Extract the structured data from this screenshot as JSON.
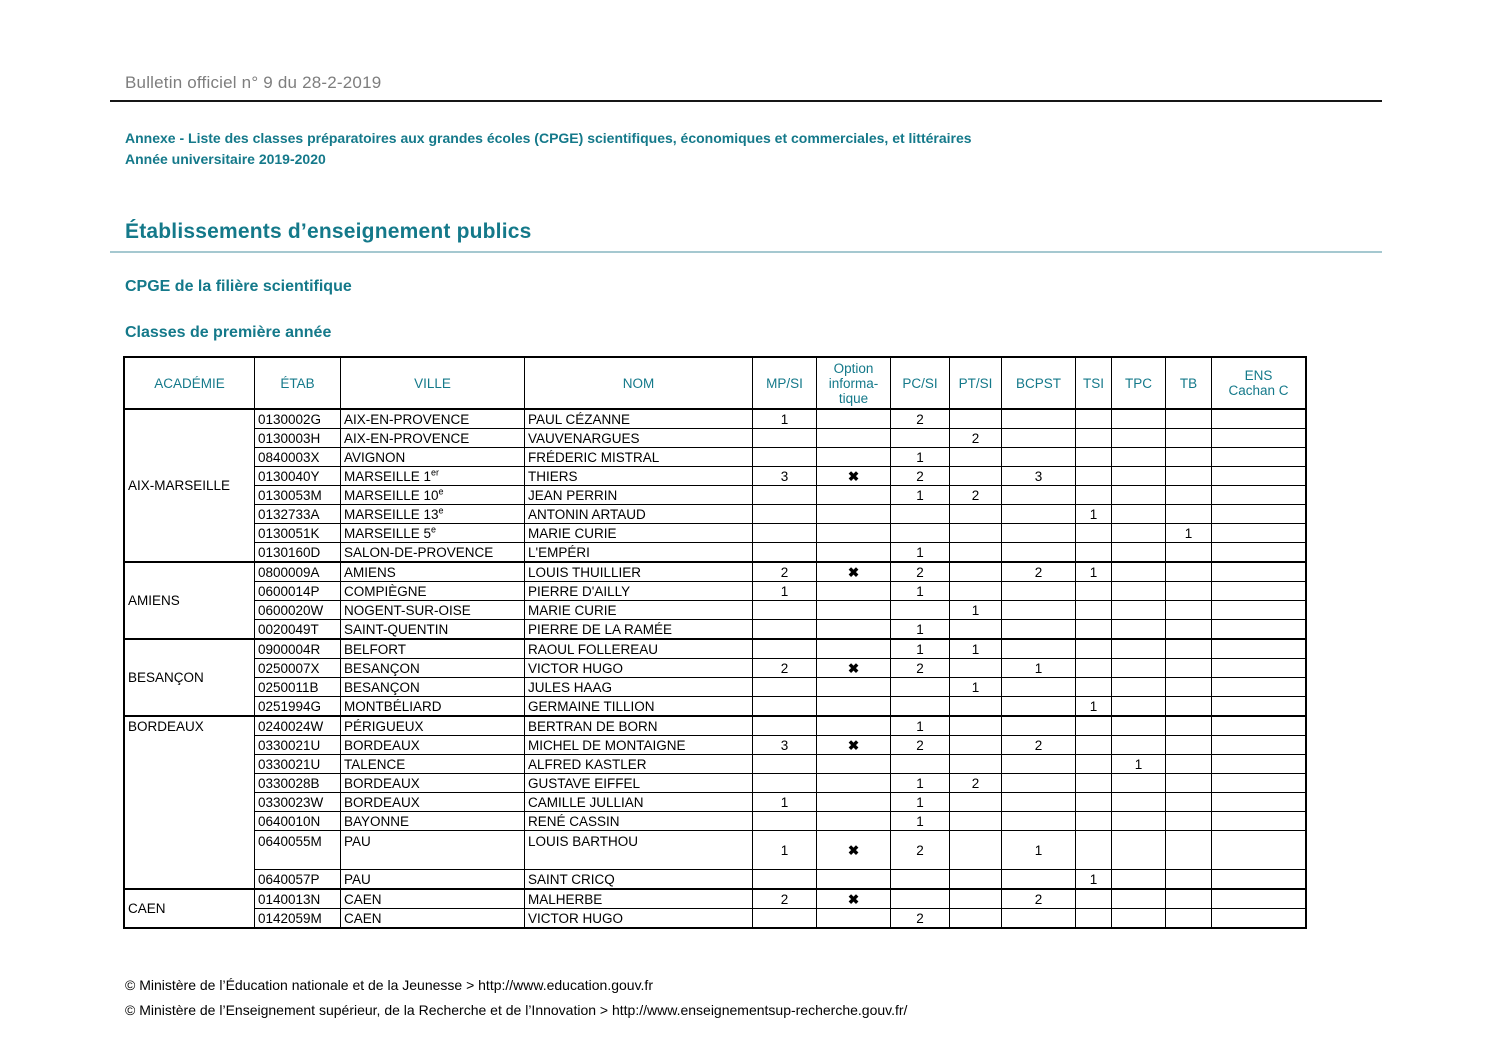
{
  "page": {
    "header_title": "Bulletin officiel n° 9 du 28-2-2019",
    "annexe_line1": "Annexe - Liste des classes préparatoires aux grandes écoles (CPGE) scientifiques, économiques et commerciales, et littéraires",
    "annexe_line2": "Année universitaire 2019-2020",
    "section_title": "Établissements d’enseignement publics",
    "subsection_title": "CPGE de la filière scientifique",
    "classes_title": "Classes de première année",
    "footer_line1": "© Ministère de l’Éducation nationale et de la Jeunesse > http://www.education.gouv.fr",
    "footer_line2": "© Ministère de l’Enseignement supérieur, de la Recherche et de l’Innovation > http://www.enseignementsup-recherche.gouv.fr/"
  },
  "colors": {
    "accent_teal": "#14798a",
    "header_gray": "#7e7e7e",
    "light_rule_teal": "#a5c8d0",
    "table_border": "#000000"
  },
  "table": {
    "option_mark": "✖",
    "columns": [
      {
        "key": "academie",
        "label": "ACADÉMIE"
      },
      {
        "key": "etab",
        "label": "ÉTAB"
      },
      {
        "key": "ville",
        "label": "VILLE"
      },
      {
        "key": "nom",
        "label": "NOM"
      },
      {
        "key": "mpsi",
        "label": "MP/SI"
      },
      {
        "key": "option",
        "label": "Option informatique",
        "lines": [
          "Option",
          "informa-",
          "tique"
        ]
      },
      {
        "key": "pcsi",
        "label": "PC/SI"
      },
      {
        "key": "ptsi",
        "label": "PT/SI"
      },
      {
        "key": "bcpst",
        "label": "BCPST"
      },
      {
        "key": "tsi",
        "label": "TSI"
      },
      {
        "key": "tpc",
        "label": "TPC"
      },
      {
        "key": "tb",
        "label": "TB"
      },
      {
        "key": "ens",
        "label": "ENS Cachan C",
        "lines": [
          "ENS",
          "Cachan C"
        ]
      }
    ],
    "groups": [
      {
        "academie": "AIX-MARSEILLE",
        "valign": "middle",
        "rows": [
          {
            "etab": "0130002G",
            "ville": "AIX-EN-PROVENCE",
            "nom": "PAUL CÉZANNE",
            "mpsi": "1",
            "option": false,
            "pcsi": "2",
            "ptsi": "",
            "bcpst": "",
            "tsi": "",
            "tpc": "",
            "tb": "",
            "ens": ""
          },
          {
            "etab": "0130003H",
            "ville": "AIX-EN-PROVENCE",
            "nom": "VAUVENARGUES",
            "mpsi": "",
            "option": false,
            "pcsi": "",
            "ptsi": "2",
            "bcpst": "",
            "tsi": "",
            "tpc": "",
            "tb": "",
            "ens": ""
          },
          {
            "etab": "0840003X",
            "ville": "AVIGNON",
            "nom": "FRÉDERIC MISTRAL",
            "mpsi": "",
            "option": false,
            "pcsi": "1",
            "ptsi": "",
            "bcpst": "",
            "tsi": "",
            "tpc": "",
            "tb": "",
            "ens": ""
          },
          {
            "etab": "0130040Y",
            "ville": "MARSEILLE 1",
            "ville_sup": "er",
            "nom": "THIERS",
            "mpsi": "3",
            "option": true,
            "pcsi": "2",
            "ptsi": "",
            "bcpst": "3",
            "tsi": "",
            "tpc": "",
            "tb": "",
            "ens": ""
          },
          {
            "etab": "0130053M",
            "ville": "MARSEILLE 10",
            "ville_sup": "e",
            "nom": "JEAN PERRIN",
            "mpsi": "",
            "option": false,
            "pcsi": "1",
            "ptsi": "2",
            "bcpst": "",
            "tsi": "",
            "tpc": "",
            "tb": "",
            "ens": ""
          },
          {
            "etab": "0132733A",
            "ville": "MARSEILLE 13",
            "ville_sup": "e",
            "nom": "ANTONIN ARTAUD",
            "mpsi": "",
            "option": false,
            "pcsi": "",
            "ptsi": "",
            "bcpst": "",
            "tsi": "1",
            "tpc": "",
            "tb": "",
            "ens": ""
          },
          {
            "etab": "0130051K",
            "ville": "MARSEILLE 5",
            "ville_sup": "e",
            "nom": "MARIE CURIE",
            "mpsi": "",
            "option": false,
            "pcsi": "",
            "ptsi": "",
            "bcpst": "",
            "tsi": "",
            "tpc": "",
            "tb": "1",
            "ens": ""
          },
          {
            "etab": "0130160D",
            "ville": "SALON-DE-PROVENCE",
            "nom": "L'EMPÉRI",
            "mpsi": "",
            "option": false,
            "pcsi": "1",
            "ptsi": "",
            "bcpst": "",
            "tsi": "",
            "tpc": "",
            "tb": "",
            "ens": ""
          }
        ]
      },
      {
        "academie": "AMIENS",
        "valign": "middle",
        "rows": [
          {
            "etab": "0800009A",
            "ville": "AMIENS",
            "nom": "LOUIS THUILLIER",
            "mpsi": "2",
            "option": true,
            "pcsi": "2",
            "ptsi": "",
            "bcpst": "2",
            "tsi": "1",
            "tpc": "",
            "tb": "",
            "ens": ""
          },
          {
            "etab": "0600014P",
            "ville": "COMPIÈGNE",
            "nom": "PIERRE D'AILLY",
            "mpsi": "1",
            "option": false,
            "pcsi": "1",
            "ptsi": "",
            "bcpst": "",
            "tsi": "",
            "tpc": "",
            "tb": "",
            "ens": ""
          },
          {
            "etab": "0600020W",
            "ville": "NOGENT-SUR-OISE",
            "nom": "MARIE CURIE",
            "mpsi": "",
            "option": false,
            "pcsi": "",
            "ptsi": "1",
            "bcpst": "",
            "tsi": "",
            "tpc": "",
            "tb": "",
            "ens": ""
          },
          {
            "etab": "0020049T",
            "ville": "SAINT-QUENTIN",
            "nom": "PIERRE DE LA RAMÉE",
            "mpsi": "",
            "option": false,
            "pcsi": "1",
            "ptsi": "",
            "bcpst": "",
            "tsi": "",
            "tpc": "",
            "tb": "",
            "ens": ""
          }
        ]
      },
      {
        "academie": "BESANÇON",
        "valign": "middle",
        "rows": [
          {
            "etab": "0900004R",
            "ville": "BELFORT",
            "nom": "RAOUL FOLLEREAU",
            "mpsi": "",
            "option": false,
            "pcsi": "1",
            "ptsi": "1",
            "bcpst": "",
            "tsi": "",
            "tpc": "",
            "tb": "",
            "ens": ""
          },
          {
            "etab": "0250007X",
            "ville": "BESANÇON",
            "nom": "VICTOR HUGO",
            "mpsi": "2",
            "option": true,
            "pcsi": "2",
            "ptsi": "",
            "bcpst": "1",
            "tsi": "",
            "tpc": "",
            "tb": "",
            "ens": ""
          },
          {
            "etab": "0250011B",
            "ville": "BESANÇON",
            "nom": "JULES HAAG",
            "mpsi": "",
            "option": false,
            "pcsi": "",
            "ptsi": "1",
            "bcpst": "",
            "tsi": "",
            "tpc": "",
            "tb": "",
            "ens": ""
          },
          {
            "etab": "0251994G",
            "ville": "MONTBÉLIARD",
            "nom": "GERMAINE TILLION",
            "mpsi": "",
            "option": false,
            "pcsi": "",
            "ptsi": "",
            "bcpst": "",
            "tsi": "1",
            "tpc": "",
            "tb": "",
            "ens": ""
          }
        ]
      },
      {
        "academie": "BORDEAUX",
        "valign": "top",
        "rows": [
          {
            "etab": "0240024W",
            "ville": "PÉRIGUEUX",
            "nom": "BERTRAN DE BORN",
            "mpsi": "",
            "option": false,
            "pcsi": "1",
            "ptsi": "",
            "bcpst": "",
            "tsi": "",
            "tpc": "",
            "tb": "",
            "ens": ""
          },
          {
            "etab": "0330021U",
            "ville": "BORDEAUX",
            "nom": "MICHEL DE MONTAIGNE",
            "mpsi": "3",
            "option": true,
            "pcsi": "2",
            "ptsi": "",
            "bcpst": "2",
            "tsi": "",
            "tpc": "",
            "tb": "",
            "ens": ""
          },
          {
            "etab": "0330021U",
            "ville": "TALENCE",
            "nom": "ALFRED KASTLER",
            "mpsi": "",
            "option": false,
            "pcsi": "",
            "ptsi": "",
            "bcpst": "",
            "tsi": "",
            "tpc": "1",
            "tb": "",
            "ens": ""
          },
          {
            "etab": "0330028B",
            "ville": "BORDEAUX",
            "nom": "GUSTAVE EIFFEL",
            "mpsi": "",
            "option": false,
            "pcsi": "1",
            "ptsi": "2",
            "bcpst": "",
            "tsi": "",
            "tpc": "",
            "tb": "",
            "ens": ""
          },
          {
            "etab": "0330023W",
            "ville": "BORDEAUX",
            "nom": "CAMILLE JULLIAN",
            "mpsi": "1",
            "option": false,
            "pcsi": "1",
            "ptsi": "",
            "bcpst": "",
            "tsi": "",
            "tpc": "",
            "tb": "",
            "ens": ""
          },
          {
            "etab": "0640010N",
            "ville": "BAYONNE",
            "nom": "RENÉ CASSIN",
            "mpsi": "",
            "option": false,
            "pcsi": "1",
            "ptsi": "",
            "bcpst": "",
            "tsi": "",
            "tpc": "",
            "tb": "",
            "ens": ""
          },
          {
            "etab": "0640055M",
            "ville": "PAU",
            "nom": "LOUIS BARTHOU",
            "mpsi": "1",
            "option": true,
            "pcsi": "2",
            "ptsi": "",
            "bcpst": "1",
            "tsi": "",
            "tpc": "",
            "tb": "",
            "ens": "",
            "tall": true
          },
          {
            "etab": "0640057P",
            "ville": "PAU",
            "nom": "SAINT CRICQ",
            "mpsi": "",
            "option": false,
            "pcsi": "",
            "ptsi": "",
            "bcpst": "",
            "tsi": "1",
            "tpc": "",
            "tb": "",
            "ens": ""
          }
        ]
      },
      {
        "academie": "CAEN",
        "valign": "middle",
        "rows": [
          {
            "etab": "0140013N",
            "ville": "CAEN",
            "nom": "MALHERBE",
            "mpsi": "2",
            "option": true,
            "pcsi": "",
            "ptsi": "",
            "bcpst": "2",
            "tsi": "",
            "tpc": "",
            "tb": "",
            "ens": ""
          },
          {
            "etab": "0142059M",
            "ville": "CAEN",
            "nom": "VICTOR HUGO",
            "mpsi": "",
            "option": false,
            "pcsi": "2",
            "ptsi": "",
            "bcpst": "",
            "tsi": "",
            "tpc": "",
            "tb": "",
            "ens": ""
          }
        ]
      }
    ]
  }
}
